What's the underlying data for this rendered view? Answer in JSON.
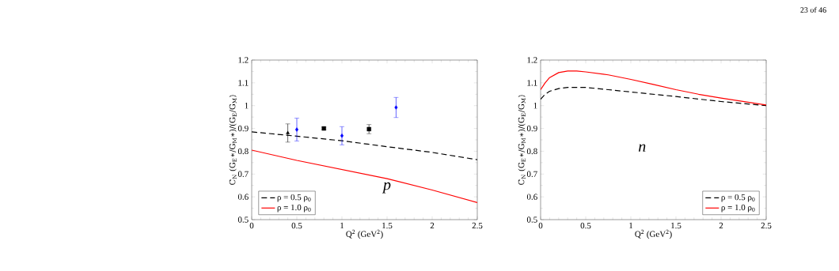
{
  "chart_data": [
    {
      "type": "line",
      "xlabel": "Q$^{2}$ (GeV$^{2}$)",
      "ylabel": "C$_{N}$ (G$_{E}$∗/G$_{M}$∗)/(G$_{E}$/G$_{M}$)",
      "xlim": [
        0,
        2.5
      ],
      "ylim": [
        0.5,
        1.2
      ],
      "xticks": [
        0,
        0.5,
        1,
        1.5,
        2,
        2.5
      ],
      "yticks": [
        0.5,
        0.6,
        0.7,
        0.8,
        0.9,
        1,
        1.1,
        1.2
      ],
      "legend": "bottom left",
      "annotations": [
        "p"
      ],
      "series": [
        {
          "name": "ρ = 0.5 ρ$_{0}$",
          "color": "#000000",
          "line_style": "dashed",
          "x": [
            0,
            0.5,
            1,
            1.5,
            2,
            2.5
          ],
          "values": [
            0.885,
            0.866,
            0.846,
            0.82,
            0.795,
            0.763
          ]
        },
        {
          "name": "ρ = 1.0 ρ$_{0}$",
          "color": "#ff0000",
          "line_style": "solid",
          "x": [
            0,
            0.5,
            1,
            1.5,
            2,
            2.5
          ],
          "values": [
            0.805,
            0.76,
            0.72,
            0.68,
            0.63,
            0.575
          ]
        },
        {
          "type": "scatter",
          "color": "#000000",
          "marker": "triangle",
          "x": [
            0.4
          ],
          "values": [
            0.88
          ],
          "errors": [
            0.04
          ]
        },
        {
          "type": "scatter",
          "color": "#0000ff",
          "marker": "diamond",
          "x": [
            0.5,
            1,
            1.6
          ],
          "values": [
            0.895,
            0.868,
            0.992
          ],
          "errors": [
            0.05,
            0.04,
            0.044
          ]
        },
        {
          "type": "scatter",
          "color": "#000000",
          "marker": "square",
          "x": [
            0.8,
            1.3
          ],
          "values": [
            0.9,
            0.897
          ],
          "errors": [
            0.006,
            0.02
          ]
        }
      ]
    },
    {
      "type": "line",
      "xlabel": "Q$^{2}$ (GeV$^{2}$)",
      "ylabel": "C$_{N}$ (G$_{E}$∗/G$_{M}$∗)/(G$_{E}$/G$_{M}$)",
      "xlim": [
        0,
        2.5
      ],
      "ylim": [
        0.5,
        1.2
      ],
      "xticks": [
        0,
        0.5,
        1,
        1.5,
        2,
        2.5
      ],
      "yticks": [
        0.5,
        0.6,
        0.7,
        0.8,
        0.9,
        1,
        1.1,
        1.2
      ],
      "legend": "bottom right",
      "annotations": [
        "n",
        "23 of 46"
      ],
      "series": [
        {
          "name": "ρ = 0.5 ρ$_{0}$",
          "color": "#000000",
          "line_style": "dashed",
          "x": [
            0,
            0.05,
            0.1,
            0.2,
            0.3,
            0.5,
            0.75,
            1,
            1.5,
            2,
            2.5
          ],
          "values": [
            1.028,
            1.05,
            1.063,
            1.075,
            1.08,
            1.08,
            1.07,
            1.06,
            1.04,
            1.018,
            1.0
          ]
        },
        {
          "name": "ρ = 1.0 ρ$_{0}$",
          "color": "#ff0000",
          "line_style": "solid",
          "x": [
            0,
            0.05,
            0.1,
            0.2,
            0.3,
            0.4,
            0.5,
            0.75,
            1,
            1.25,
            1.5,
            1.75,
            2,
            2.25,
            2.5
          ],
          "values": [
            1.07,
            1.1,
            1.123,
            1.145,
            1.152,
            1.152,
            1.148,
            1.135,
            1.115,
            1.093,
            1.07,
            1.05,
            1.033,
            1.018,
            1.003
          ]
        }
      ]
    }
  ]
}
